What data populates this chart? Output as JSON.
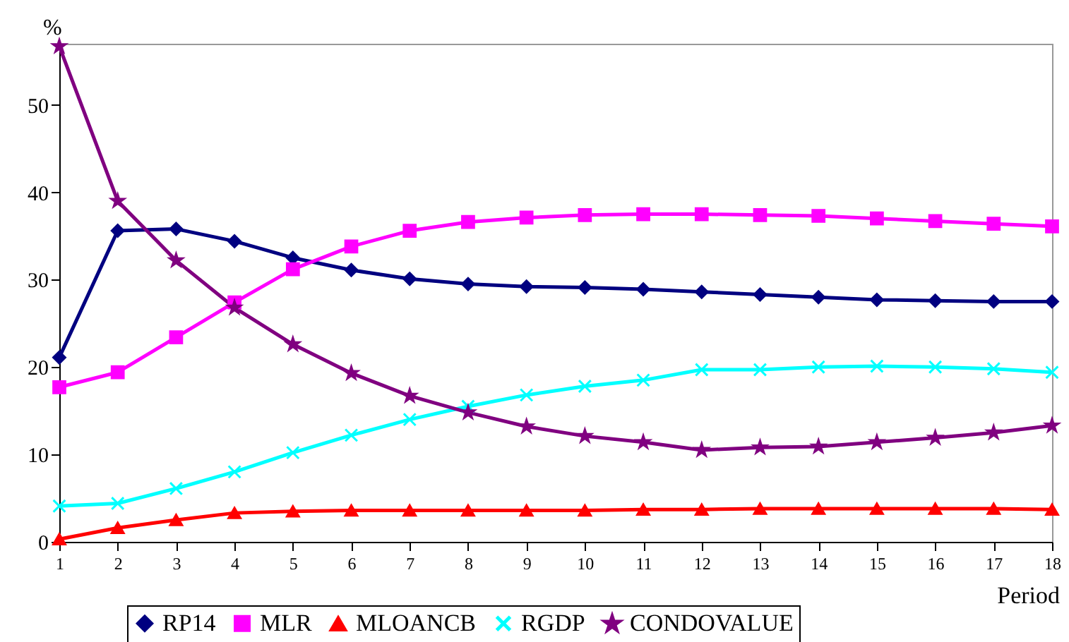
{
  "chart_data": {
    "type": "line",
    "xlabel": "Period",
    "ylabel": "%",
    "x": [
      1,
      2,
      3,
      4,
      5,
      6,
      7,
      8,
      9,
      10,
      11,
      12,
      13,
      14,
      15,
      16,
      17,
      18
    ],
    "xlim": [
      1,
      18
    ],
    "xticks": [
      1,
      2,
      3,
      4,
      5,
      6,
      7,
      8,
      9,
      10,
      11,
      12,
      13,
      14,
      15,
      16,
      17,
      18
    ],
    "ylim": [
      0,
      57
    ],
    "yticks": [
      0,
      10,
      20,
      30,
      40,
      50
    ],
    "grid": false,
    "legend": "bottom",
    "line_style": "solid",
    "series": [
      {
        "name": "RP14",
        "color": "#000080",
        "marker": "diamond",
        "values": [
          21.1,
          35.6,
          35.8,
          34.4,
          32.5,
          31.1,
          30.1,
          29.5,
          29.2,
          29.1,
          28.9,
          28.6,
          28.3,
          28.0,
          27.7,
          27.6,
          27.5,
          27.5
        ]
      },
      {
        "name": "MLR",
        "color": "#ff00ff",
        "marker": "square",
        "values": [
          17.7,
          19.4,
          23.4,
          27.4,
          31.2,
          33.8,
          35.6,
          36.6,
          37.1,
          37.4,
          37.5,
          37.5,
          37.4,
          37.3,
          37.0,
          36.7,
          36.4,
          36.1
        ]
      },
      {
        "name": "MLOANCB",
        "color": "#ff0000",
        "marker": "triangle",
        "values": [
          0.3,
          1.6,
          2.5,
          3.3,
          3.5,
          3.6,
          3.6,
          3.6,
          3.6,
          3.6,
          3.7,
          3.7,
          3.8,
          3.8,
          3.8,
          3.8,
          3.8,
          3.7
        ]
      },
      {
        "name": "RGDP",
        "color": "#00ffff",
        "marker": "cross",
        "values": [
          4.1,
          4.4,
          6.1,
          8.0,
          10.2,
          12.2,
          14.0,
          15.5,
          16.8,
          17.8,
          18.5,
          19.7,
          19.7,
          20.0,
          20.1,
          20.0,
          19.8,
          19.4
        ]
      },
      {
        "name": "CONDOVALUE",
        "color": "#800080",
        "marker": "star",
        "values": [
          56.7,
          39.0,
          32.2,
          26.8,
          22.6,
          19.3,
          16.7,
          14.8,
          13.2,
          12.1,
          11.4,
          10.5,
          10.8,
          10.9,
          11.4,
          11.9,
          12.5,
          13.3
        ]
      }
    ]
  }
}
